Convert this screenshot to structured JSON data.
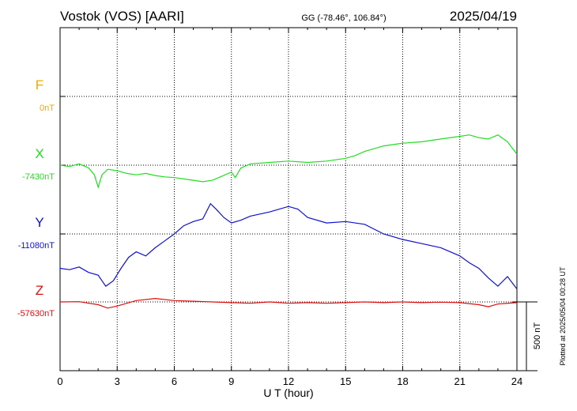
{
  "header": {
    "station": "Vostok (VOS)  [AARI]",
    "coords": "GG (-78.46°, 106.84°)",
    "date": "2025/04/19"
  },
  "side_note": "Plotted at 2025/05/04 00:28 UT",
  "colors": {
    "F": "#f0a800",
    "X": "#22dd22",
    "Y": "#1010d0",
    "Z": "#dd1010",
    "frame": "#000000",
    "grid": "#000000"
  },
  "chart_data": {
    "type": "line",
    "xlabel": "U T (hour)",
    "xlim": [
      0,
      24
    ],
    "xticks": [
      "0",
      "3",
      "6",
      "9",
      "12",
      "15",
      "18",
      "21",
      "24"
    ],
    "scale_bar": {
      "label": "500 nT",
      "nT": 500
    },
    "panels": [
      {
        "component": "F",
        "label": "F",
        "baseline": "0nT",
        "x": [],
        "values": []
      },
      {
        "component": "X",
        "label": "X",
        "baseline": "-7430nT",
        "x": [
          0,
          0.5,
          1,
          1.5,
          1.8,
          2.0,
          2.2,
          2.5,
          3.0,
          3.5,
          4,
          4.5,
          5,
          5.5,
          6,
          6.5,
          7,
          7.5,
          8,
          8.5,
          9,
          9.2,
          9.5,
          10,
          11,
          12,
          13,
          14,
          15,
          15.5,
          16,
          16.5,
          17,
          18,
          19,
          20,
          21,
          21.5,
          22,
          22.5,
          23,
          23.5,
          24
        ],
        "values": [
          -7430,
          -7440,
          -7420,
          -7450,
          -7500,
          -7590,
          -7500,
          -7460,
          -7470,
          -7490,
          -7500,
          -7490,
          -7505,
          -7515,
          -7520,
          -7530,
          -7540,
          -7550,
          -7540,
          -7510,
          -7480,
          -7520,
          -7450,
          -7420,
          -7410,
          -7400,
          -7410,
          -7400,
          -7380,
          -7360,
          -7330,
          -7310,
          -7290,
          -7270,
          -7260,
          -7240,
          -7220,
          -7210,
          -7230,
          -7240,
          -7210,
          -7260,
          -7350
        ]
      },
      {
        "component": "Y",
        "label": "Y",
        "baseline": "-11080nT",
        "x": [
          0,
          0.5,
          1,
          1.5,
          2.0,
          2.4,
          2.8,
          3.2,
          3.6,
          4.0,
          4.5,
          5,
          5.5,
          6,
          6.5,
          7,
          7.5,
          7.9,
          8.2,
          8.6,
          9,
          9.5,
          10,
          11,
          12,
          12.5,
          13,
          14,
          15,
          16,
          17,
          18,
          19,
          20,
          21,
          21.5,
          22,
          22.5,
          23,
          23.5,
          24
        ],
        "values": [
          -11330,
          -11340,
          -11320,
          -11360,
          -11380,
          -11460,
          -11420,
          -11330,
          -11250,
          -11210,
          -11240,
          -11180,
          -11130,
          -11080,
          -11020,
          -10990,
          -10970,
          -10860,
          -10900,
          -10960,
          -11000,
          -10980,
          -10950,
          -10920,
          -10880,
          -10900,
          -10960,
          -11000,
          -10990,
          -11010,
          -11080,
          -11120,
          -11150,
          -11180,
          -11240,
          -11290,
          -11330,
          -11400,
          -11460,
          -11390,
          -11480
        ]
      },
      {
        "component": "Z",
        "label": "Z",
        "baseline": "-57630nT",
        "x": [
          0,
          1,
          2,
          2.5,
          3,
          4,
          5,
          6,
          7,
          8,
          9,
          10,
          11,
          12,
          13,
          14,
          15,
          16,
          17,
          18,
          19,
          20,
          21,
          22,
          22.5,
          23,
          24
        ],
        "values": [
          -57630,
          -57628,
          -57650,
          -57675,
          -57660,
          -57620,
          -57605,
          -57620,
          -57625,
          -57630,
          -57635,
          -57640,
          -57630,
          -57640,
          -57635,
          -57640,
          -57635,
          -57630,
          -57635,
          -57630,
          -57635,
          -57632,
          -57635,
          -57650,
          -57665,
          -57645,
          -57635
        ]
      }
    ]
  }
}
